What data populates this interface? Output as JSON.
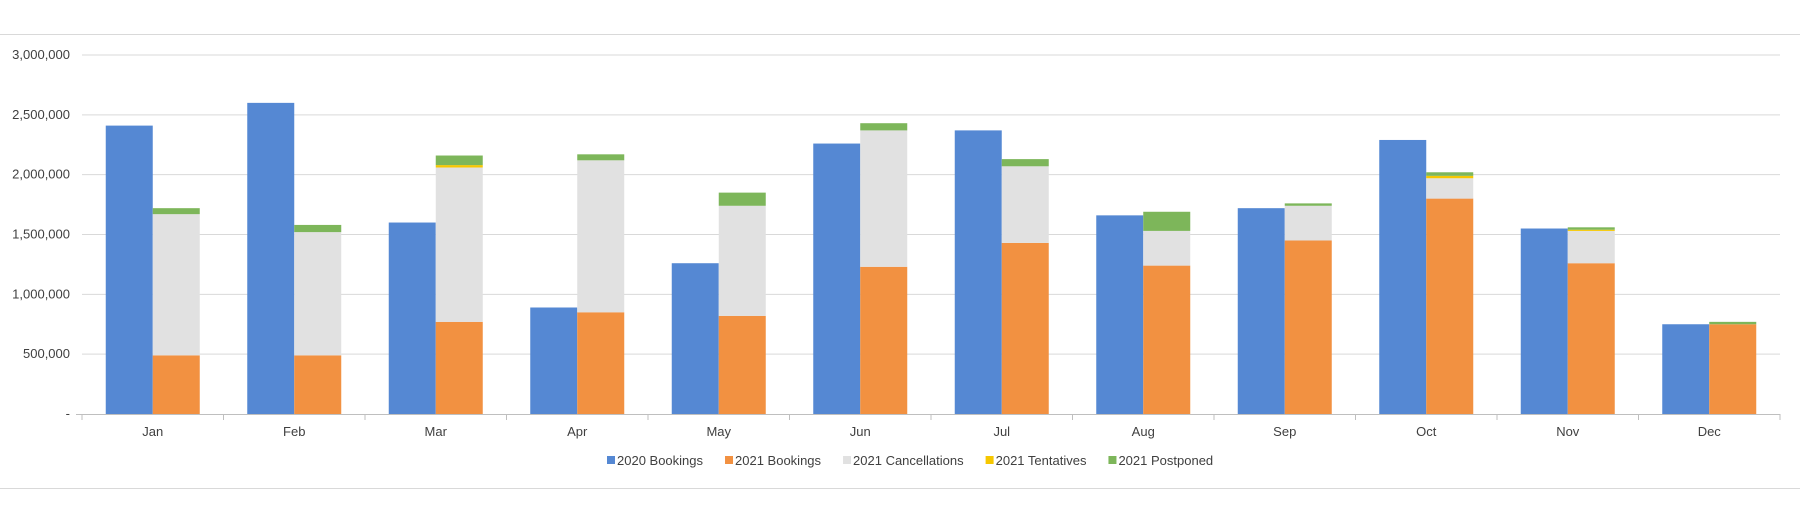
{
  "chart_data": {
    "type": "bar",
    "categories": [
      "Jan",
      "Feb",
      "Mar",
      "Apr",
      "May",
      "Jun",
      "Jul",
      "Aug",
      "Sep",
      "Oct",
      "Nov",
      "Dec"
    ],
    "ylim": [
      0,
      3000000
    ],
    "y_ticks": [
      {
        "value": 0,
        "label": "-"
      },
      {
        "value": 500000,
        "label": "500,000"
      },
      {
        "value": 1000000,
        "label": "1,000,000"
      },
      {
        "value": 1500000,
        "label": "1,500,000"
      },
      {
        "value": 2000000,
        "label": "2,000,000"
      },
      {
        "value": 2500000,
        "label": "2,500,000"
      },
      {
        "value": 3000000,
        "label": "3,000,000"
      }
    ],
    "grid": true,
    "legend_position": "bottom",
    "series": [
      {
        "name": "2020 Bookings",
        "stack": "2020",
        "color": "#5588d3",
        "values": [
          2410000,
          2600000,
          1600000,
          890000,
          1260000,
          2260000,
          2370000,
          1660000,
          1720000,
          2290000,
          1550000,
          750000
        ]
      },
      {
        "name": "2021 Bookings",
        "stack": "2021",
        "color": "#f29141",
        "values": [
          490000,
          490000,
          770000,
          850000,
          820000,
          1230000,
          1430000,
          1240000,
          1450000,
          1800000,
          1260000,
          750000
        ]
      },
      {
        "name": "2021 Cancellations",
        "stack": "2021",
        "color": "#e1e1e1",
        "values": [
          1180000,
          1030000,
          1290000,
          1270000,
          920000,
          1140000,
          640000,
          290000,
          290000,
          170000,
          270000,
          0
        ]
      },
      {
        "name": "2021 Tentatives",
        "stack": "2021",
        "color": "#f6c700",
        "values": [
          0,
          0,
          20000,
          0,
          0,
          0,
          0,
          0,
          0,
          20000,
          10000,
          0
        ]
      },
      {
        "name": "2021 Postponed",
        "stack": "2021",
        "color": "#7db65a",
        "values": [
          50000,
          60000,
          80000,
          50000,
          110000,
          60000,
          60000,
          160000,
          20000,
          30000,
          20000,
          20000
        ]
      }
    ]
  }
}
